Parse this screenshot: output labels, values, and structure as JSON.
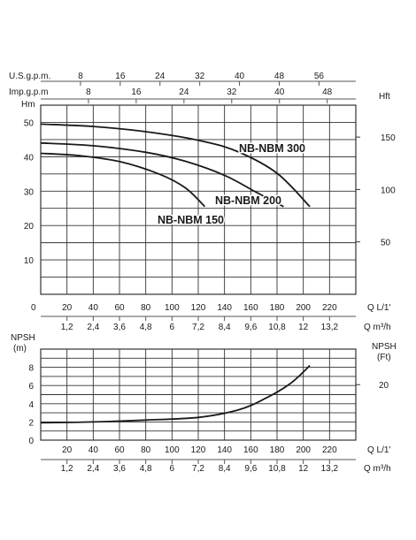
{
  "chart_data": [
    {
      "type": "line",
      "title": "",
      "top_axes": [
        {
          "label": "U.S.g.p.m.",
          "ticks": [
            "8",
            "16",
            "24",
            "32",
            "40",
            "48",
            "56"
          ],
          "values": [
            8,
            16,
            24,
            32,
            40,
            48,
            56
          ]
        },
        {
          "label": "Imp.g.p.m",
          "ticks": [
            "8",
            "16",
            "24",
            "32",
            "40",
            "48"
          ],
          "values": [
            8,
            16,
            24,
            32,
            40,
            48
          ]
        }
      ],
      "ylabel_left": "Hm",
      "ylabel_right": "Hft",
      "yticks_left": [
        "0",
        "10",
        "20",
        "30",
        "40",
        "50"
      ],
      "yticks_right": [
        "50",
        "100",
        "150"
      ],
      "xlabel_flow_ls": "Q L/1'",
      "xticks_flow_ls": [
        "20",
        "40",
        "60",
        "80",
        "100",
        "120",
        "140",
        "160",
        "180",
        "200",
        "220"
      ],
      "xlabel_flow_m3h": "Q m³/h",
      "xticks_flow_m3h": [
        "1,2",
        "2,4",
        "3,6",
        "4,8",
        "6",
        "7,2",
        "8,4",
        "9,6",
        "10,8",
        "12",
        "13,2"
      ],
      "xlim": [
        0,
        240
      ],
      "ylim": [
        0,
        55
      ],
      "grid": true,
      "series": [
        {
          "name": "NB-NBM 300",
          "x": [
            0,
            40,
            80,
            120,
            150,
            180,
            205
          ],
          "y": [
            49.5,
            48.8,
            47.3,
            44.8,
            41.5,
            35.2,
            25.5
          ]
        },
        {
          "name": "NB-NBM 200",
          "x": [
            0,
            40,
            80,
            110,
            140,
            165,
            185
          ],
          "y": [
            44,
            43.2,
            41.3,
            38.7,
            34.6,
            29.5,
            25.5
          ]
        },
        {
          "name": "NB-NBM 150",
          "x": [
            0,
            30,
            60,
            90,
            110,
            125
          ],
          "y": [
            41,
            40.3,
            38.6,
            35,
            31,
            25.5
          ]
        }
      ]
    },
    {
      "type": "line",
      "title": "",
      "ylabel_left": "NPSH\n(m)",
      "ylabel_right": "NPSH\n(Ft)",
      "yticks_left": [
        "0",
        "2",
        "4",
        "6",
        "8"
      ],
      "yticks_right": [
        "20"
      ],
      "xlabel_flow_ls": "Q L/1'",
      "xticks_flow_ls": [
        "20",
        "40",
        "60",
        "80",
        "100",
        "120",
        "140",
        "160",
        "180",
        "200",
        "220"
      ],
      "xlabel_flow_m3h": "Q m³/h",
      "xticks_flow_m3h": [
        "1,2",
        "2,4",
        "3,6",
        "4,8",
        "6",
        "7,2",
        "8,4",
        "9,6",
        "10,8",
        "12",
        "13,2"
      ],
      "xlim": [
        0,
        240
      ],
      "ylim": [
        0,
        10
      ],
      "grid": true,
      "series": [
        {
          "name": "",
          "x": [
            0,
            40,
            80,
            120,
            150,
            170,
            190,
            205
          ],
          "y": [
            1.9,
            2.0,
            2.2,
            2.5,
            3.3,
            4.5,
            6.2,
            8.2
          ]
        }
      ]
    }
  ]
}
